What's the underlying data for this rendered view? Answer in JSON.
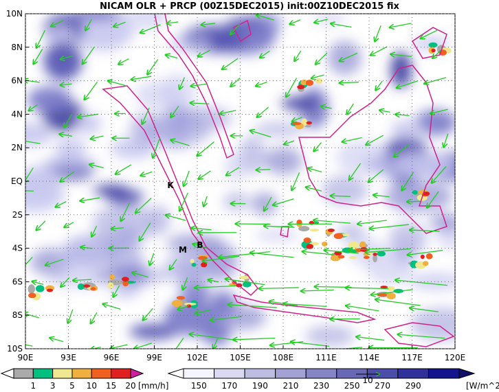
{
  "title": "NICAM OLR + PRCP (00Z15DEC2015) init:00Z10DEC2015 fix",
  "lat_labels": [
    "10N",
    "8N",
    "6N",
    "4N",
    "2N",
    "EQ",
    "2S",
    "4S",
    "6S",
    "8S",
    "10S"
  ],
  "lon_labels": [
    "90E",
    "93E",
    "96E",
    "99E",
    "102E",
    "105E",
    "108E",
    "111E",
    "114E",
    "117E",
    "120E"
  ],
  "markers": [
    {
      "label": "K"
    },
    {
      "label": "M"
    },
    {
      "label": "B"
    }
  ],
  "precip_colorbar": {
    "labels": [
      "1",
      "3",
      "5",
      "10",
      "15",
      "20"
    ],
    "unit": "[mm/h]"
  },
  "olr_colorbar": {
    "labels": [
      "150",
      "170",
      "190",
      "210",
      "230",
      "250",
      "270",
      "290"
    ],
    "unit": "[W/m^2]"
  },
  "vector_reference": "10"
}
